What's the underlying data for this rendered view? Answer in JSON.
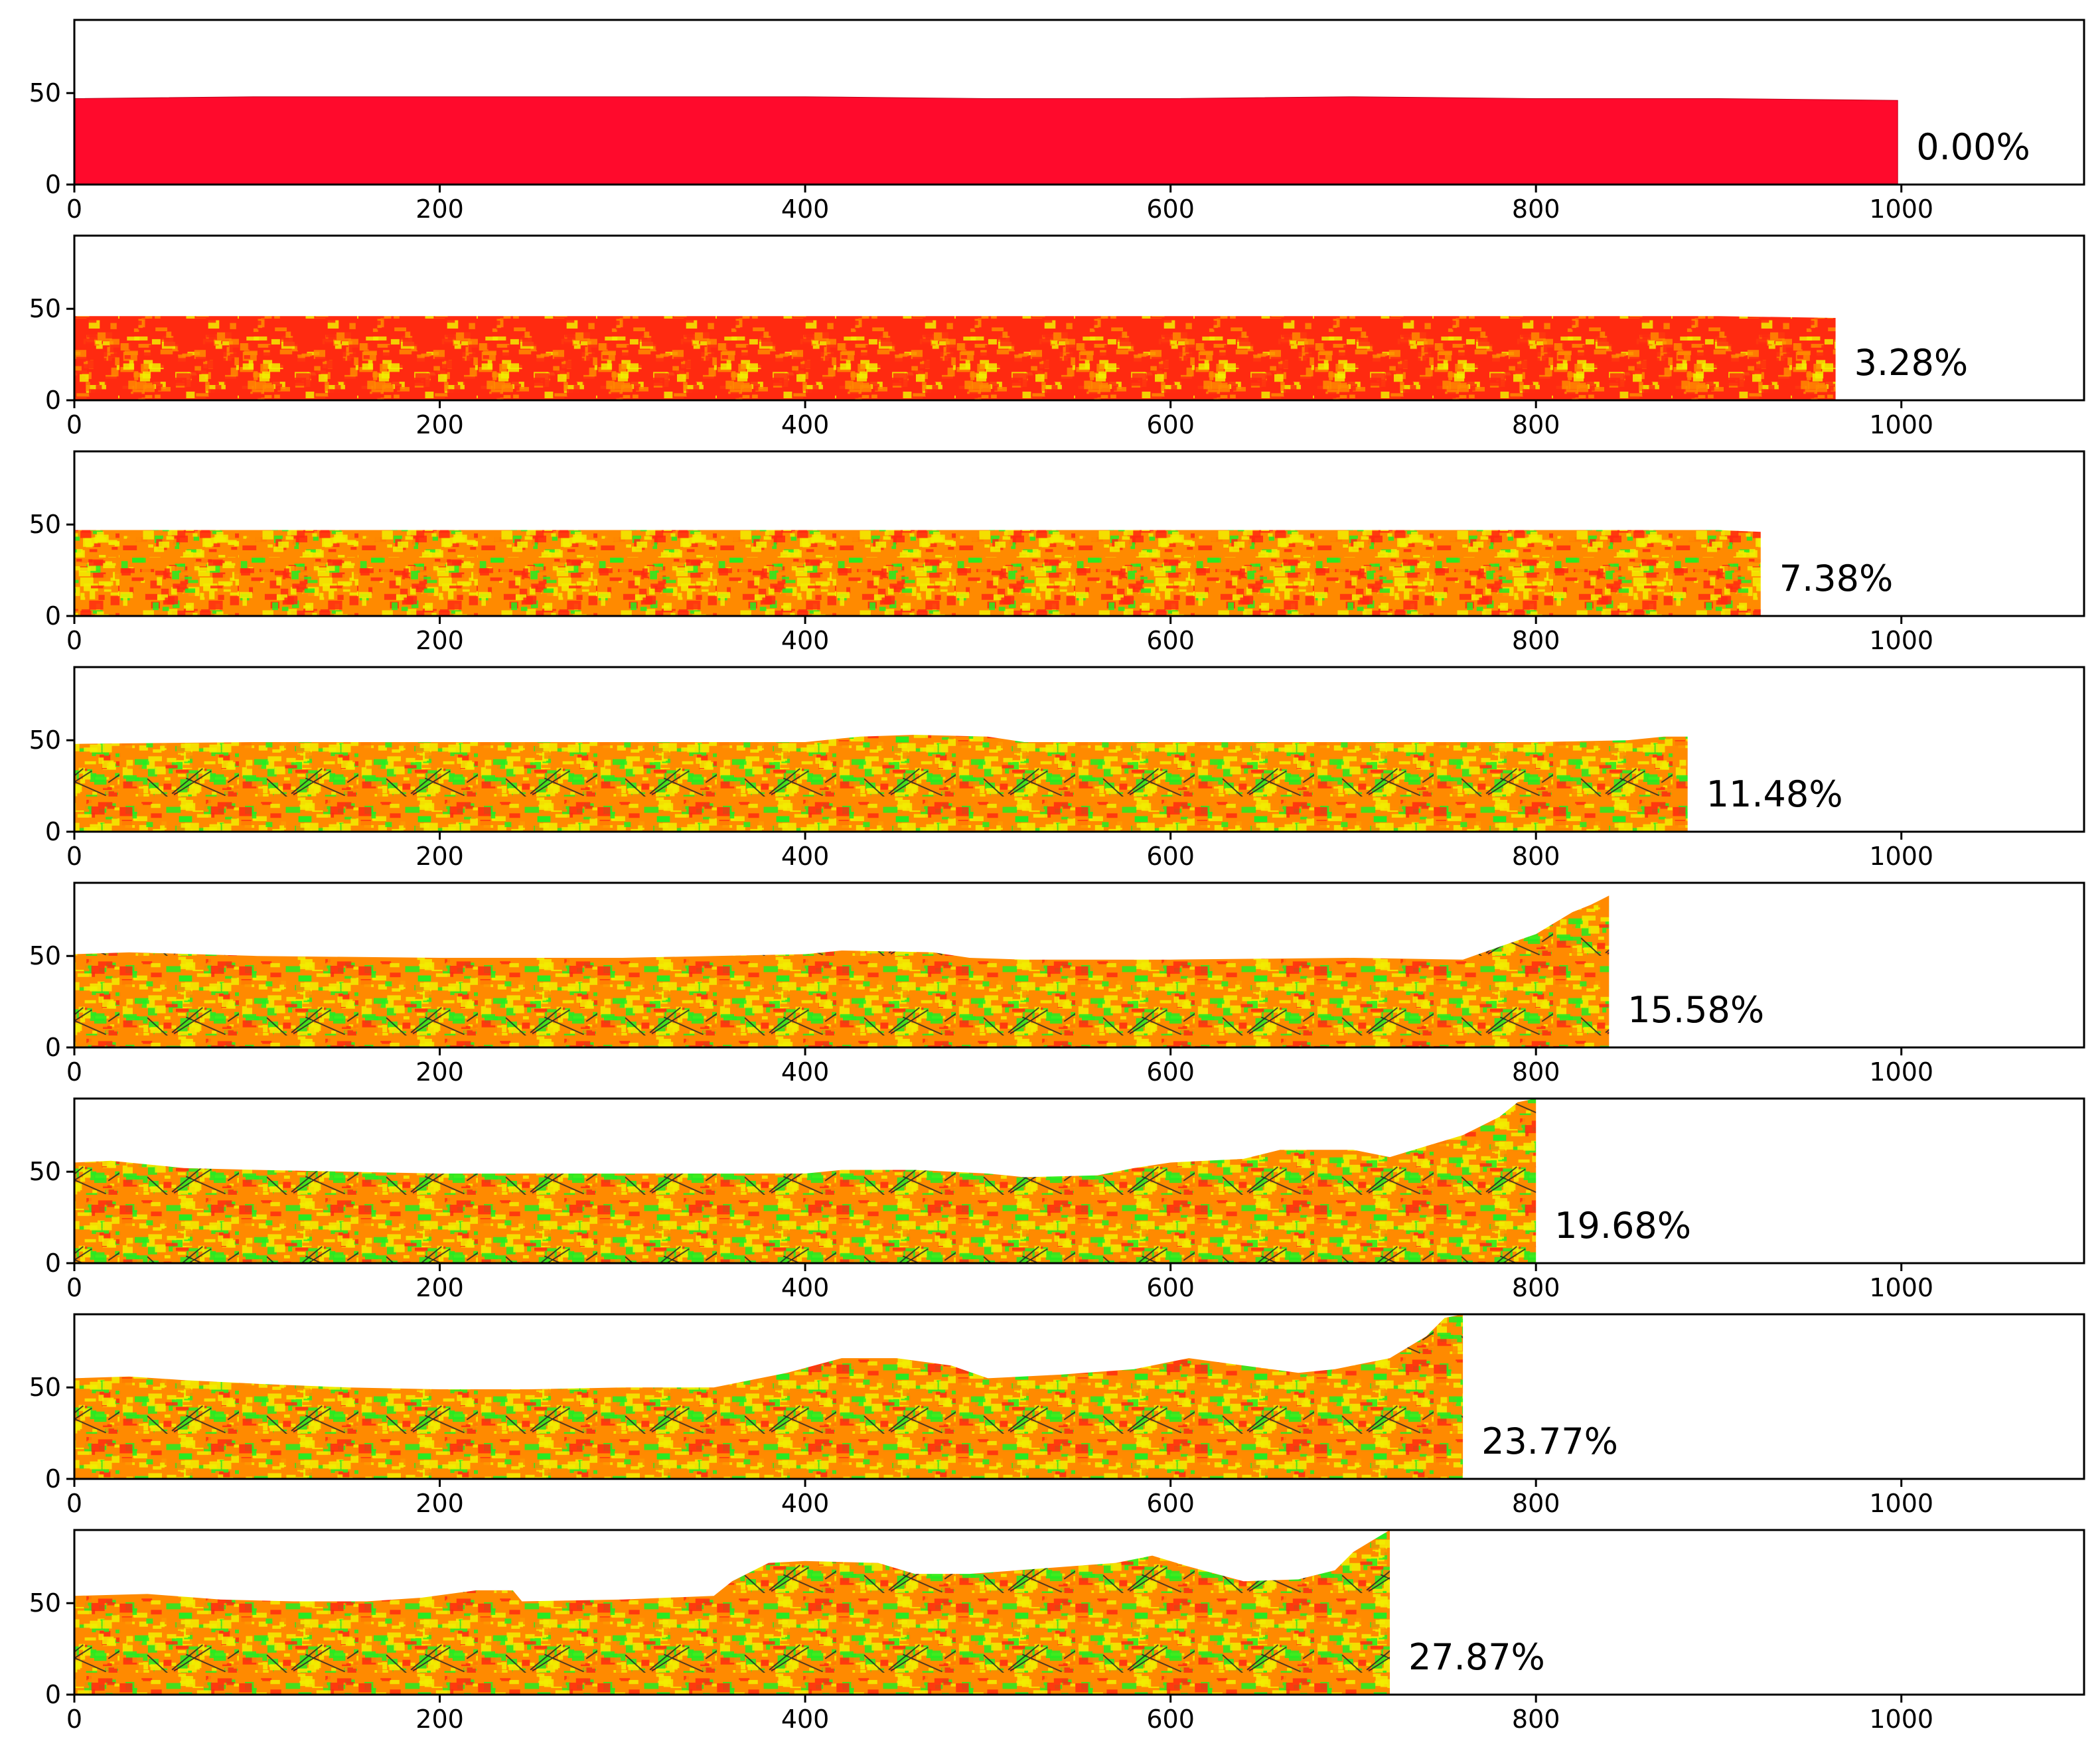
{
  "chart_data": {
    "type": "area",
    "xlim": [
      0,
      1100
    ],
    "ylim": [
      0,
      90
    ],
    "xticks": [
      0,
      200,
      400,
      600,
      800,
      1000
    ],
    "yticks": [
      0,
      50
    ],
    "xtick_labels": [
      "0",
      "200",
      "400",
      "600",
      "800",
      "1000"
    ],
    "ytick_labels": [
      "0",
      "50"
    ],
    "colormap_note": "red-yellow-green fill with dark crack lines",
    "fill_colors": {
      "pristine": "#ff0a2c",
      "red": "#ff2a10",
      "orange": "#ff8a00",
      "yellow": "#f2ee00",
      "green": "#22ee22",
      "crack": "#222222"
    },
    "panels": [
      {
        "label": "0.00%",
        "right_edge": 998,
        "profile": [
          [
            0,
            47
          ],
          [
            100,
            48
          ],
          [
            200,
            48
          ],
          [
            300,
            48
          ],
          [
            400,
            48
          ],
          [
            500,
            47
          ],
          [
            600,
            47
          ],
          [
            700,
            48
          ],
          [
            800,
            47
          ],
          [
            900,
            47
          ],
          [
            998,
            46
          ]
        ],
        "mix": "pristine"
      },
      {
        "label": "3.28%",
        "right_edge": 964,
        "profile": [
          [
            0,
            46
          ],
          [
            100,
            46
          ],
          [
            200,
            46
          ],
          [
            300,
            46
          ],
          [
            400,
            46
          ],
          [
            500,
            46
          ],
          [
            600,
            46
          ],
          [
            700,
            46
          ],
          [
            800,
            46
          ],
          [
            900,
            46
          ],
          [
            964,
            45
          ]
        ],
        "mix": "red"
      },
      {
        "label": "7.38%",
        "right_edge": 923,
        "profile": [
          [
            0,
            47
          ],
          [
            100,
            47
          ],
          [
            200,
            47
          ],
          [
            300,
            47
          ],
          [
            400,
            47
          ],
          [
            500,
            47
          ],
          [
            600,
            47
          ],
          [
            700,
            47
          ],
          [
            800,
            47
          ],
          [
            900,
            47
          ],
          [
            923,
            46
          ]
        ],
        "mix": "orange"
      },
      {
        "label": "11.48%",
        "right_edge": 883,
        "profile": [
          [
            0,
            48
          ],
          [
            100,
            49
          ],
          [
            200,
            49
          ],
          [
            300,
            49
          ],
          [
            400,
            49
          ],
          [
            430,
            52
          ],
          [
            460,
            53
          ],
          [
            500,
            52
          ],
          [
            520,
            49
          ],
          [
            600,
            49
          ],
          [
            700,
            49
          ],
          [
            800,
            49
          ],
          [
            850,
            50
          ],
          [
            870,
            52
          ],
          [
            883,
            52
          ]
        ],
        "mix": "yellow"
      },
      {
        "label": "15.58%",
        "right_edge": 840,
        "profile": [
          [
            0,
            51
          ],
          [
            30,
            52
          ],
          [
            100,
            50
          ],
          [
            200,
            49
          ],
          [
            300,
            49
          ],
          [
            400,
            51
          ],
          [
            420,
            53
          ],
          [
            470,
            52
          ],
          [
            490,
            49
          ],
          [
            520,
            48
          ],
          [
            600,
            48
          ],
          [
            700,
            49
          ],
          [
            760,
            48
          ],
          [
            780,
            55
          ],
          [
            800,
            62
          ],
          [
            820,
            74
          ],
          [
            830,
            78
          ],
          [
            840,
            83
          ]
        ],
        "mix": "yellow"
      },
      {
        "label": "19.68%",
        "right_edge": 800,
        "profile": [
          [
            0,
            55
          ],
          [
            20,
            56
          ],
          [
            60,
            52
          ],
          [
            100,
            51
          ],
          [
            150,
            50
          ],
          [
            200,
            49
          ],
          [
            300,
            49
          ],
          [
            400,
            49
          ],
          [
            420,
            51
          ],
          [
            460,
            51
          ],
          [
            500,
            49
          ],
          [
            520,
            47
          ],
          [
            560,
            48
          ],
          [
            580,
            52
          ],
          [
            600,
            55
          ],
          [
            640,
            57
          ],
          [
            660,
            62
          ],
          [
            700,
            62
          ],
          [
            720,
            58
          ],
          [
            740,
            64
          ],
          [
            760,
            70
          ],
          [
            780,
            80
          ],
          [
            790,
            88
          ],
          [
            800,
            90
          ]
        ],
        "mix": "yellow"
      },
      {
        "label": "23.77%",
        "right_edge": 760,
        "profile": [
          [
            0,
            55
          ],
          [
            30,
            56
          ],
          [
            60,
            54
          ],
          [
            100,
            52
          ],
          [
            150,
            50
          ],
          [
            200,
            49
          ],
          [
            250,
            49
          ],
          [
            300,
            50
          ],
          [
            350,
            50
          ],
          [
            370,
            54
          ],
          [
            390,
            58
          ],
          [
            420,
            66
          ],
          [
            450,
            66
          ],
          [
            480,
            62
          ],
          [
            500,
            55
          ],
          [
            540,
            57
          ],
          [
            580,
            60
          ],
          [
            610,
            66
          ],
          [
            640,
            62
          ],
          [
            670,
            58
          ],
          [
            690,
            60
          ],
          [
            720,
            66
          ],
          [
            740,
            78
          ],
          [
            750,
            88
          ],
          [
            760,
            90
          ]
        ],
        "mix": "yellow"
      },
      {
        "label": "27.87%",
        "right_edge": 720,
        "profile": [
          [
            0,
            54
          ],
          [
            40,
            55
          ],
          [
            80,
            52
          ],
          [
            120,
            51
          ],
          [
            160,
            51
          ],
          [
            190,
            53
          ],
          [
            220,
            57
          ],
          [
            240,
            57
          ],
          [
            245,
            51
          ],
          [
            300,
            52
          ],
          [
            350,
            54
          ],
          [
            360,
            62
          ],
          [
            380,
            72
          ],
          [
            400,
            73
          ],
          [
            440,
            72
          ],
          [
            460,
            66
          ],
          [
            490,
            66
          ],
          [
            530,
            69
          ],
          [
            570,
            72
          ],
          [
            590,
            76
          ],
          [
            610,
            70
          ],
          [
            640,
            62
          ],
          [
            670,
            63
          ],
          [
            690,
            68
          ],
          [
            700,
            78
          ],
          [
            710,
            84
          ],
          [
            720,
            90
          ]
        ],
        "mix": "yellow"
      }
    ]
  }
}
